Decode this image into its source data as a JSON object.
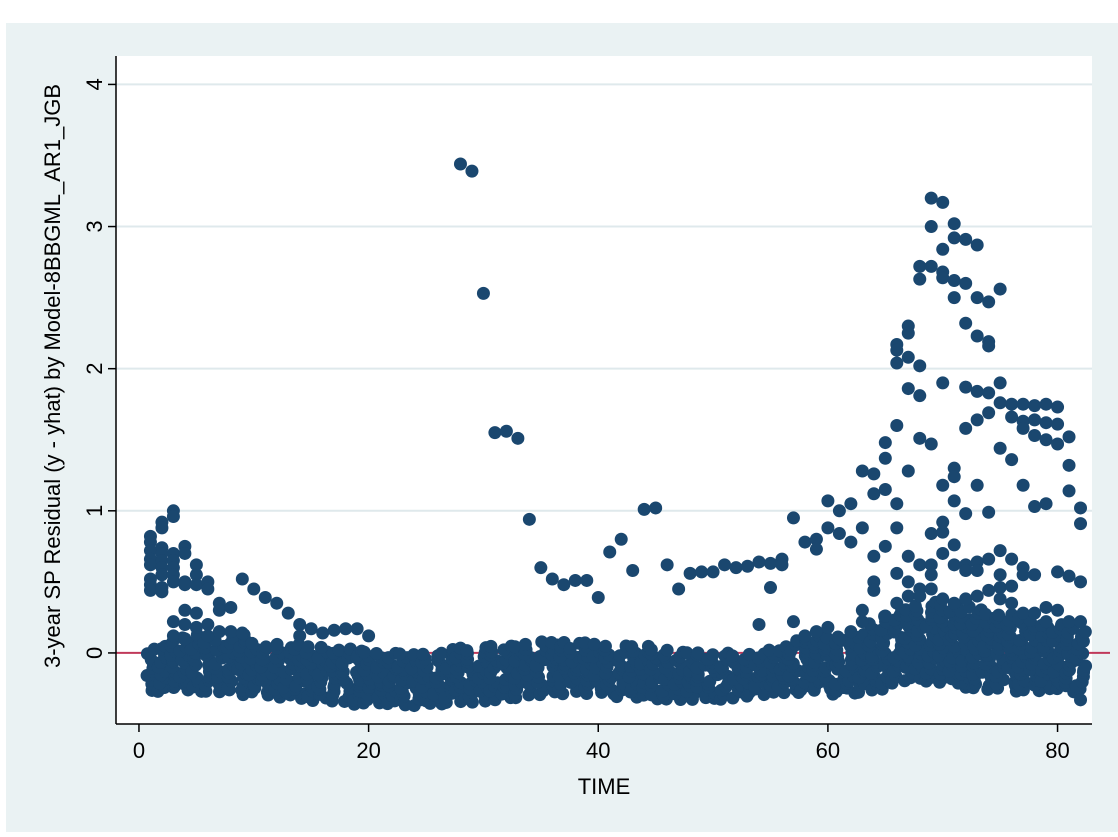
{
  "chart_data": {
    "type": "scatter",
    "xlabel": "TIME",
    "ylabel": "3-year SP Residual (y - yhat) by Model-8BBGML_AR1_JGB",
    "xlim": [
      -2,
      83
    ],
    "ylim": [
      -0.5,
      4.2
    ],
    "xticks": [
      0,
      20,
      40,
      60,
      80
    ],
    "yticks": [
      0,
      1,
      2,
      3,
      4
    ],
    "grid": "horizontal",
    "reference_line": {
      "y": 0,
      "color": "#c0395a"
    },
    "colors": {
      "background": "#eaf2f3",
      "plot": "#ffffff",
      "marker": "#1a476f",
      "grid": "#dfe9ec"
    },
    "band": {
      "x": [
        1,
        82
      ],
      "y_min": [
        -0.26,
        -0.27,
        -0.25,
        -0.26,
        -0.27,
        -0.26,
        -0.28,
        -0.27,
        -0.29,
        -0.28,
        -0.3,
        -0.31,
        -0.3,
        -0.32,
        -0.33,
        -0.32,
        -0.33,
        -0.34,
        -0.36,
        -0.35,
        -0.35,
        -0.36,
        -0.36,
        -0.37,
        -0.36,
        -0.35,
        -0.34,
        -0.35,
        -0.34,
        -0.33,
        -0.32,
        -0.31,
        -0.32,
        -0.3,
        -0.29,
        -0.28,
        -0.29,
        -0.27,
        -0.28,
        -0.28,
        -0.29,
        -0.3,
        -0.31,
        -0.3,
        -0.32,
        -0.33,
        -0.32,
        -0.33,
        -0.32,
        -0.31,
        -0.32,
        -0.31,
        -0.3,
        -0.29,
        -0.28,
        -0.27,
        -0.28,
        -0.26,
        -0.27,
        -0.28,
        -0.27,
        -0.28,
        -0.27,
        -0.26,
        -0.25,
        -0.22,
        -0.2,
        -0.18,
        -0.2,
        -0.21,
        -0.22,
        -0.24,
        -0.25,
        -0.26,
        -0.25,
        -0.26,
        -0.25,
        -0.26,
        -0.25,
        -0.26,
        -0.27,
        -0.26
      ],
      "y_max": [
        0.02,
        0.05,
        0.08,
        0.1,
        0.12,
        0.1,
        0.08,
        0.1,
        0.12,
        0.06,
        0.05,
        0.06,
        0.04,
        0.05,
        0.04,
        0.03,
        0.02,
        0.03,
        0.02,
        0.0,
        -0.01,
        0.0,
        -0.01,
        -0.02,
        -0.01,
        0.0,
        0.02,
        0.03,
        0.02,
        0.03,
        0.04,
        0.05,
        0.04,
        0.06,
        0.07,
        0.08,
        0.07,
        0.06,
        0.07,
        0.06,
        0.05,
        0.04,
        0.05,
        0.04,
        0.03,
        0.02,
        0.01,
        0.0,
        0.01,
        -0.01,
        0.0,
        -0.02,
        -0.01,
        0.0,
        0.02,
        0.05,
        0.08,
        0.1,
        0.12,
        0.1,
        0.12,
        0.1,
        0.13,
        0.2,
        0.26,
        0.3,
        0.3,
        0.33,
        0.35,
        0.34,
        0.33,
        0.32,
        0.3,
        0.28,
        0.27,
        0.26,
        0.24,
        0.22,
        0.2,
        0.2,
        0.18,
        0.15
      ]
    },
    "points": [
      [
        1,
        0.82
      ],
      [
        1,
        0.78
      ],
      [
        1,
        0.72
      ],
      [
        1,
        0.66
      ],
      [
        1,
        0.62
      ],
      [
        1,
        0.52
      ],
      [
        1,
        0.48
      ],
      [
        1,
        0.44
      ],
      [
        2,
        0.92
      ],
      [
        2,
        0.88
      ],
      [
        2,
        0.74
      ],
      [
        2,
        0.7
      ],
      [
        2,
        0.65
      ],
      [
        2,
        0.6
      ],
      [
        2,
        0.55
      ],
      [
        2,
        0.46
      ],
      [
        2,
        0.43
      ],
      [
        3,
        1.0
      ],
      [
        3,
        0.96
      ],
      [
        3,
        0.7
      ],
      [
        3,
        0.65
      ],
      [
        3,
        0.6
      ],
      [
        3,
        0.55
      ],
      [
        3,
        0.5
      ],
      [
        3,
        0.22
      ],
      [
        3,
        0.12
      ],
      [
        4,
        0.75
      ],
      [
        4,
        0.7
      ],
      [
        4,
        0.5
      ],
      [
        4,
        0.48
      ],
      [
        4,
        0.3
      ],
      [
        4,
        0.2
      ],
      [
        4,
        0.1
      ],
      [
        5,
        0.62
      ],
      [
        5,
        0.55
      ],
      [
        5,
        0.48
      ],
      [
        5,
        0.28
      ],
      [
        5,
        0.18
      ],
      [
        6,
        0.5
      ],
      [
        6,
        0.45
      ],
      [
        6,
        0.2
      ],
      [
        6,
        0.12
      ],
      [
        7,
        0.35
      ],
      [
        7,
        0.3
      ],
      [
        7,
        0.15
      ],
      [
        8,
        0.32
      ],
      [
        8,
        0.15
      ],
      [
        9,
        0.52
      ],
      [
        9,
        0.14
      ],
      [
        10,
        0.45
      ],
      [
        11,
        0.39
      ],
      [
        12,
        0.35
      ],
      [
        13,
        0.28
      ],
      [
        14,
        0.2
      ],
      [
        14,
        0.12
      ],
      [
        15,
        0.17
      ],
      [
        16,
        0.14
      ],
      [
        17,
        0.16
      ],
      [
        18,
        0.17
      ],
      [
        19,
        0.17
      ],
      [
        20,
        0.12
      ],
      [
        28,
        3.44
      ],
      [
        29,
        3.39
      ],
      [
        30,
        2.53
      ],
      [
        31,
        1.55
      ],
      [
        32,
        1.56
      ],
      [
        33,
        1.51
      ],
      [
        34,
        0.94
      ],
      [
        35,
        0.6
      ],
      [
        36,
        0.52
      ],
      [
        37,
        0.48
      ],
      [
        38,
        0.51
      ],
      [
        39,
        0.51
      ],
      [
        40,
        0.39
      ],
      [
        41,
        0.71
      ],
      [
        42,
        0.8
      ],
      [
        43,
        0.58
      ],
      [
        44,
        1.01
      ],
      [
        45,
        1.02
      ],
      [
        46,
        0.62
      ],
      [
        47,
        0.45
      ],
      [
        48,
        0.56
      ],
      [
        49,
        0.57
      ],
      [
        50,
        0.57
      ],
      [
        51,
        0.62
      ],
      [
        52,
        0.6
      ],
      [
        53,
        0.61
      ],
      [
        54,
        0.64
      ],
      [
        54,
        0.2
      ],
      [
        55,
        0.63
      ],
      [
        55,
        0.46
      ],
      [
        56,
        0.66
      ],
      [
        56,
        0.62
      ],
      [
        57,
        0.95
      ],
      [
        57,
        0.22
      ],
      [
        58,
        0.78
      ],
      [
        58,
        0.12
      ],
      [
        59,
        0.8
      ],
      [
        59,
        0.73
      ],
      [
        59,
        0.15
      ],
      [
        60,
        1.07
      ],
      [
        60,
        0.88
      ],
      [
        60,
        0.18
      ],
      [
        61,
        0.84
      ],
      [
        61,
        1.0
      ],
      [
        61,
        0.1
      ],
      [
        62,
        1.05
      ],
      [
        62,
        0.78
      ],
      [
        62,
        0.15
      ],
      [
        63,
        1.28
      ],
      [
        63,
        0.88
      ],
      [
        63,
        0.3
      ],
      [
        63,
        0.22
      ],
      [
        64,
        1.26
      ],
      [
        64,
        1.12
      ],
      [
        64,
        0.68
      ],
      [
        64,
        0.5
      ],
      [
        64,
        0.44
      ],
      [
        65,
        1.48
      ],
      [
        65,
        1.37
      ],
      [
        65,
        1.15
      ],
      [
        65,
        0.75
      ],
      [
        65,
        0.26
      ],
      [
        66,
        2.17
      ],
      [
        66,
        2.13
      ],
      [
        66,
        2.04
      ],
      [
        66,
        1.6
      ],
      [
        66,
        1.05
      ],
      [
        66,
        0.88
      ],
      [
        66,
        0.56
      ],
      [
        66,
        0.35
      ],
      [
        67,
        2.3
      ],
      [
        67,
        2.25
      ],
      [
        67,
        2.08
      ],
      [
        67,
        1.86
      ],
      [
        67,
        1.28
      ],
      [
        67,
        0.68
      ],
      [
        67,
        0.5
      ],
      [
        67,
        0.4
      ],
      [
        68,
        2.72
      ],
      [
        68,
        2.63
      ],
      [
        68,
        2.02
      ],
      [
        68,
        1.81
      ],
      [
        68,
        1.51
      ],
      [
        68,
        0.62
      ],
      [
        68,
        0.45
      ],
      [
        68,
        0.4
      ],
      [
        69,
        3.2
      ],
      [
        69,
        3.0
      ],
      [
        69,
        2.72
      ],
      [
        69,
        1.47
      ],
      [
        69,
        0.84
      ],
      [
        69,
        0.62
      ],
      [
        69,
        0.55
      ],
      [
        69,
        0.45
      ],
      [
        70,
        3.17
      ],
      [
        70,
        2.84
      ],
      [
        70,
        2.68
      ],
      [
        70,
        2.64
      ],
      [
        70,
        1.9
      ],
      [
        70,
        1.18
      ],
      [
        70,
        0.92
      ],
      [
        70,
        0.85
      ],
      [
        70,
        0.7
      ],
      [
        70,
        0.38
      ],
      [
        71,
        3.02
      ],
      [
        71,
        2.92
      ],
      [
        71,
        2.62
      ],
      [
        71,
        2.5
      ],
      [
        71,
        1.3
      ],
      [
        71,
        1.24
      ],
      [
        71,
        1.07
      ],
      [
        71,
        0.76
      ],
      [
        71,
        0.62
      ],
      [
        71,
        0.35
      ],
      [
        72,
        2.91
      ],
      [
        72,
        2.6
      ],
      [
        72,
        2.32
      ],
      [
        72,
        1.87
      ],
      [
        72,
        1.58
      ],
      [
        72,
        0.98
      ],
      [
        72,
        0.62
      ],
      [
        72,
        0.58
      ],
      [
        72,
        0.38
      ],
      [
        73,
        2.87
      ],
      [
        73,
        2.5
      ],
      [
        73,
        2.23
      ],
      [
        73,
        1.84
      ],
      [
        73,
        1.64
      ],
      [
        73,
        1.18
      ],
      [
        73,
        0.64
      ],
      [
        73,
        0.58
      ],
      [
        73,
        0.4
      ],
      [
        74,
        2.47
      ],
      [
        74,
        2.19
      ],
      [
        74,
        2.16
      ],
      [
        74,
        1.83
      ],
      [
        74,
        1.69
      ],
      [
        74,
        0.99
      ],
      [
        74,
        0.66
      ],
      [
        74,
        0.44
      ],
      [
        75,
        2.56
      ],
      [
        75,
        1.9
      ],
      [
        75,
        1.76
      ],
      [
        75,
        1.44
      ],
      [
        75,
        0.72
      ],
      [
        75,
        0.55
      ],
      [
        75,
        0.46
      ],
      [
        75,
        0.38
      ],
      [
        76,
        1.75
      ],
      [
        76,
        1.66
      ],
      [
        76,
        1.36
      ],
      [
        76,
        0.66
      ],
      [
        76,
        0.47
      ],
      [
        76,
        0.35
      ],
      [
        77,
        1.75
      ],
      [
        77,
        1.63
      ],
      [
        77,
        1.58
      ],
      [
        77,
        1.18
      ],
      [
        77,
        0.6
      ],
      [
        77,
        0.55
      ],
      [
        77,
        0.28
      ],
      [
        78,
        1.74
      ],
      [
        78,
        1.64
      ],
      [
        78,
        1.53
      ],
      [
        78,
        1.03
      ],
      [
        78,
        0.55
      ],
      [
        78,
        0.28
      ],
      [
        79,
        1.75
      ],
      [
        79,
        1.62
      ],
      [
        79,
        1.5
      ],
      [
        79,
        1.05
      ],
      [
        79,
        0.32
      ],
      [
        79,
        0.22
      ],
      [
        80,
        1.73
      ],
      [
        80,
        1.61
      ],
      [
        80,
        1.47
      ],
      [
        80,
        0.57
      ],
      [
        80,
        0.3
      ],
      [
        81,
        1.52
      ],
      [
        81,
        1.32
      ],
      [
        81,
        1.14
      ],
      [
        81,
        0.54
      ],
      [
        81,
        0.22
      ],
      [
        82,
        1.02
      ],
      [
        82,
        0.91
      ],
      [
        82,
        0.5
      ],
      [
        82,
        0.22
      ],
      [
        82,
        -0.33
      ]
    ]
  }
}
